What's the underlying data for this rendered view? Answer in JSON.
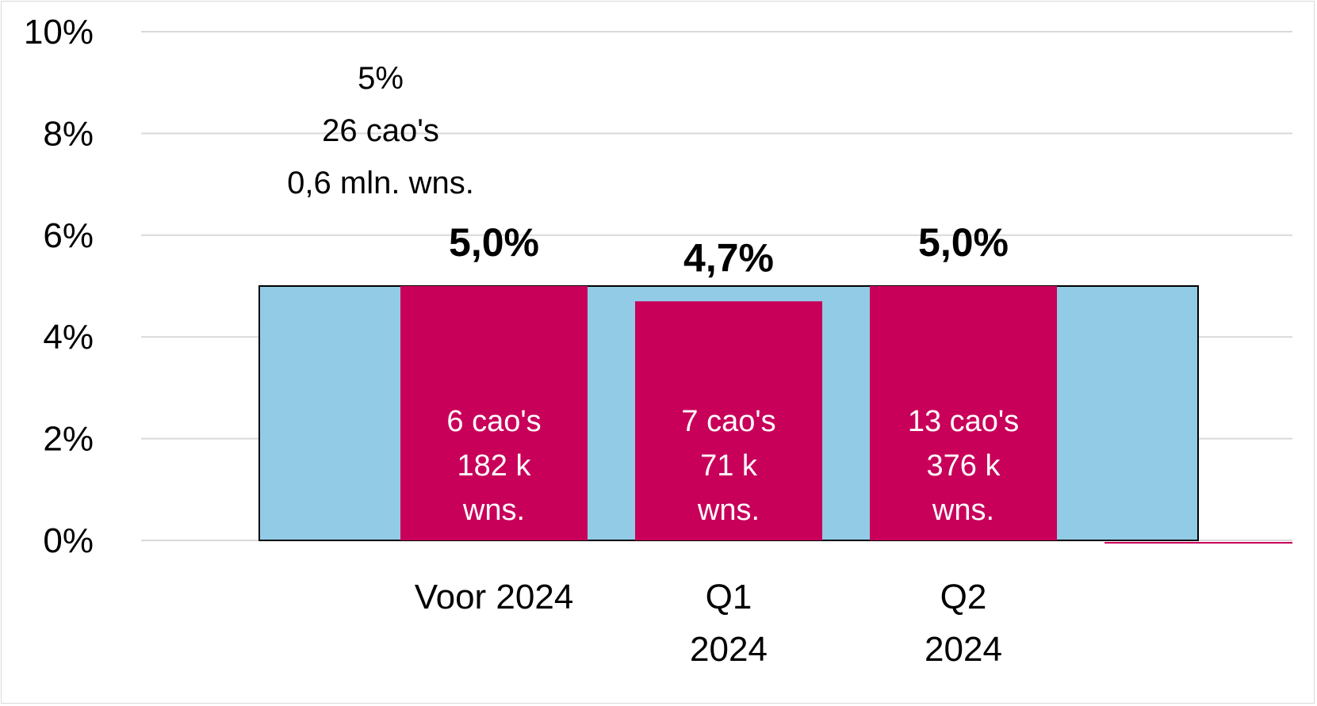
{
  "chart_data": {
    "type": "bar",
    "ylim": [
      0,
      10
    ],
    "yticks": [
      "0%",
      "2%",
      "4%",
      "6%",
      "8%",
      "10%"
    ],
    "grid": true,
    "categories": [
      {
        "lines": [
          "Voor 2024"
        ]
      },
      {
        "lines": [
          "Q1",
          "2024"
        ]
      },
      {
        "lines": [
          "Q2",
          "2024"
        ]
      }
    ],
    "overall": {
      "value": 5.0,
      "color": "#92cbe6",
      "label_lines": [
        "5%",
        "26 cao's",
        "0,6 mln. wns."
      ]
    },
    "series": [
      {
        "color": "#c8005a",
        "values": [
          5.0,
          4.7,
          5.0
        ],
        "value_labels": [
          "5,0%",
          "4,7%",
          "5,0%"
        ],
        "inner_labels": [
          [
            "6 cao's",
            "182 k",
            "wns."
          ],
          [
            "7 cao's",
            "71 k",
            "wns."
          ],
          [
            "13 cao's",
            "376 k",
            "wns."
          ]
        ]
      }
    ]
  }
}
